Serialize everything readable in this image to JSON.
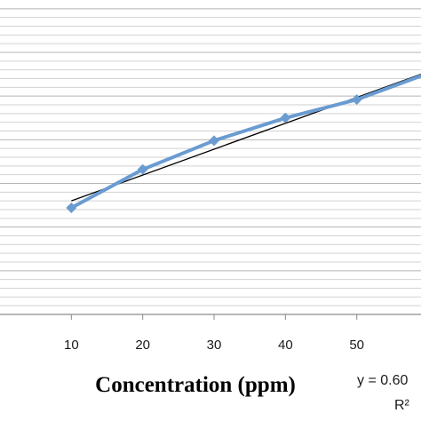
{
  "chart_data": {
    "type": "line",
    "xlabel": "Concentration (ppm)",
    "x_ticks": [
      "10",
      "20",
      "30",
      "40",
      "50"
    ],
    "xlim": [
      0,
      59
    ],
    "ylim": [
      0,
      36
    ],
    "grid": true,
    "series": [
      {
        "color": "#6a9bd1",
        "marker": "diamond",
        "x": [
          10,
          20,
          30,
          40,
          50,
          60
        ],
        "y": [
          12.2,
          16.6,
          19.9,
          22.5,
          24.6,
          27.6
        ]
      }
    ],
    "trendline": {
      "type": "linear",
      "color": "#000000",
      "x": [
        10,
        60
      ],
      "y": [
        13.0,
        27.8
      ]
    },
    "annotations": {
      "equation": "y = 0.60",
      "r_squared": "R²"
    }
  }
}
